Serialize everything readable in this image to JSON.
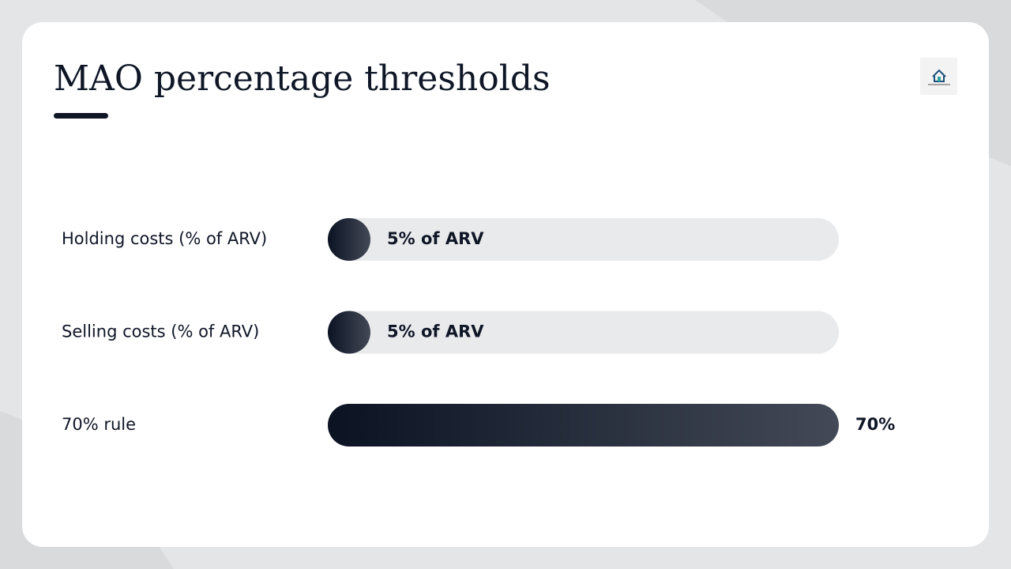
{
  "chart_data": {
    "type": "bar",
    "orientation": "horizontal",
    "title": "MAO percentage thresholds",
    "categories": [
      "Holding costs (% of ARV)",
      "Selling costs (% of ARV)",
      "70% rule"
    ],
    "values": [
      5,
      5,
      70
    ],
    "value_labels": [
      "5% of ARV",
      "5% of ARV",
      "70%"
    ],
    "xlim": [
      0,
      70
    ],
    "color": [
      "#0b1323",
      "#434956"
    ],
    "track_color": "#e9eaec"
  }
}
